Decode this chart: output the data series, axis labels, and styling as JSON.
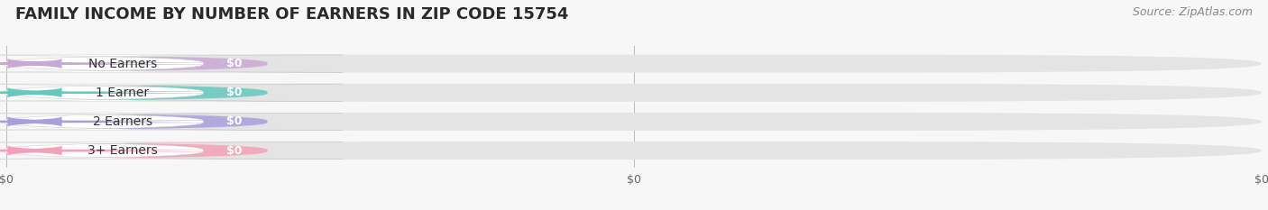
{
  "title": "FAMILY INCOME BY NUMBER OF EARNERS IN ZIP CODE 15754",
  "source": "Source: ZipAtlas.com",
  "categories": [
    "No Earners",
    "1 Earner",
    "2 Earners",
    "3+ Earners"
  ],
  "values": [
    0,
    0,
    0,
    0
  ],
  "bar_colors": [
    "#c9a8d4",
    "#66c8be",
    "#a8a0dc",
    "#f4a0b8"
  ],
  "background_color": "#f7f7f7",
  "bar_bg_color": "#e4e4e4",
  "figsize": [
    14.06,
    2.33
  ],
  "dpi": 100,
  "title_fontsize": 13,
  "source_fontsize": 9,
  "label_fontsize": 10,
  "value_fontsize": 9
}
